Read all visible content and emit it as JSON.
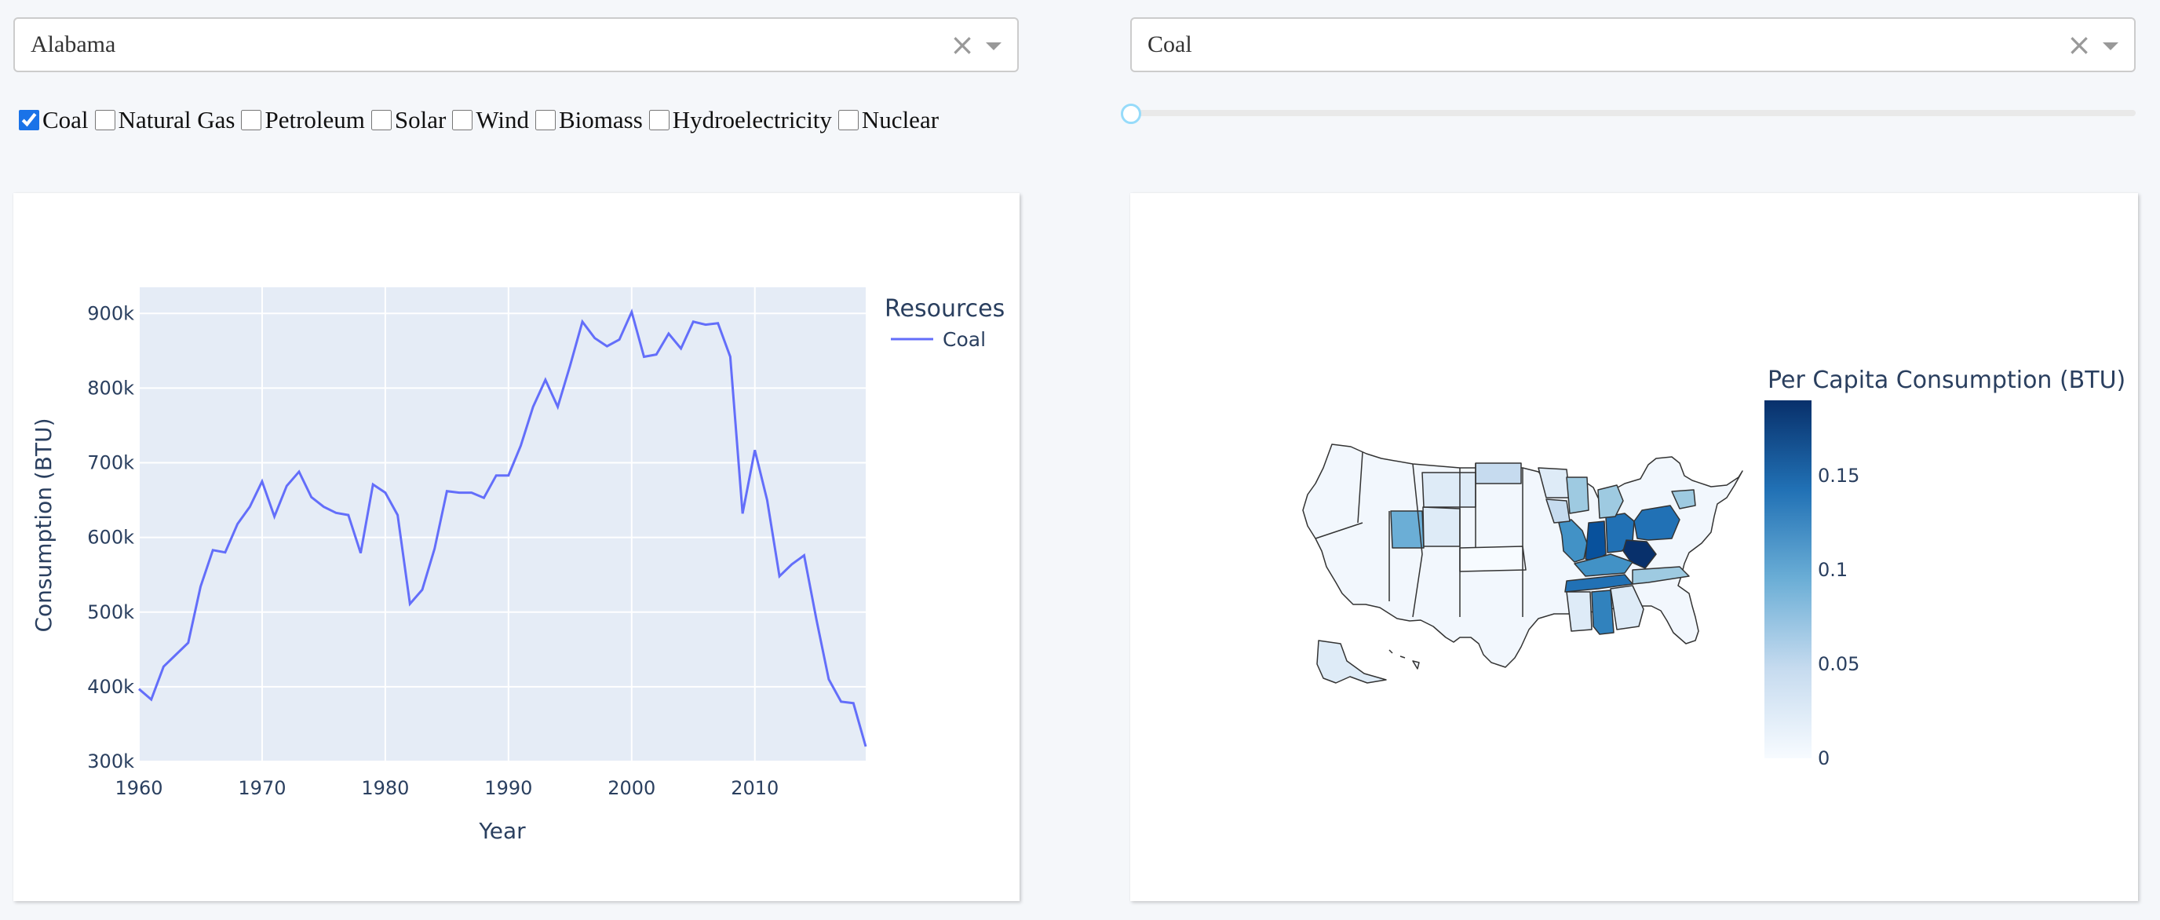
{
  "state_dropdown": {
    "value": "Alabama",
    "clear_icon": "clear-x-icon",
    "arrow_icon": "chevron-down-icon"
  },
  "resource_dropdown": {
    "value": "Coal",
    "clear_icon": "clear-x-icon",
    "arrow_icon": "chevron-down-icon"
  },
  "resources": [
    {
      "label": "Coal",
      "checked": true
    },
    {
      "label": "Natural Gas",
      "checked": false
    },
    {
      "label": "Petroleum",
      "checked": false
    },
    {
      "label": "Solar",
      "checked": false
    },
    {
      "label": "Wind",
      "checked": false
    },
    {
      "label": "Biomass",
      "checked": false
    },
    {
      "label": "Hydroelectricity",
      "checked": false
    },
    {
      "label": "Nuclear",
      "checked": false
    }
  ],
  "year_slider": {
    "value": 0
  },
  "colors": {
    "line": "#636efa",
    "plot_bg": "#e5ecf6",
    "map_dark": "#08306b",
    "map_light": "#f7fbff"
  },
  "chart_data": [
    {
      "type": "line",
      "xlabel": "Year",
      "ylabel": "Consumption (BTU)",
      "legend_title": "Resources",
      "legend_placement": "top-right",
      "xlim": [
        1960,
        2019
      ],
      "ylim": [
        300000,
        935000
      ],
      "x_ticks": [
        1960,
        1970,
        1980,
        1990,
        2000,
        2010
      ],
      "y_ticks": [
        300000,
        400000,
        500000,
        600000,
        700000,
        800000,
        900000
      ],
      "y_tick_labels": [
        "300k",
        "400k",
        "500k",
        "600k",
        "700k",
        "800k",
        "900k"
      ],
      "series": [
        {
          "name": "Coal",
          "x": [
            1960,
            1961,
            1962,
            1963,
            1964,
            1965,
            1966,
            1967,
            1968,
            1969,
            1970,
            1971,
            1972,
            1973,
            1974,
            1975,
            1976,
            1977,
            1978,
            1979,
            1980,
            1981,
            1982,
            1983,
            1984,
            1985,
            1986,
            1987,
            1988,
            1989,
            1990,
            1991,
            1992,
            1993,
            1994,
            1995,
            1996,
            1997,
            1998,
            1999,
            2000,
            2001,
            2002,
            2003,
            2004,
            2005,
            2006,
            2007,
            2008,
            2009,
            2010,
            2011,
            2012,
            2013,
            2014,
            2015,
            2016,
            2017,
            2018,
            2019
          ],
          "values": [
            397000,
            383000,
            427000,
            443000,
            459000,
            534000,
            583000,
            580000,
            618000,
            641000,
            675000,
            628000,
            669000,
            688000,
            654000,
            641000,
            633000,
            630000,
            579000,
            671000,
            660000,
            630000,
            511000,
            530000,
            585000,
            662000,
            660000,
            660000,
            653000,
            683000,
            683000,
            723000,
            775000,
            811000,
            775000,
            830000,
            889000,
            867000,
            856000,
            865000,
            902000,
            842000,
            845000,
            873000,
            853000,
            889000,
            885000,
            887000,
            842000,
            632000,
            717000,
            650000,
            548000,
            564000,
            576000,
            490000,
            410000,
            380000,
            378000,
            320000
          ]
        }
      ]
    },
    {
      "type": "choropleth",
      "colorbar_title": "Per Capita Consumption (BTU)",
      "colorbar_range": [
        0,
        0.19
      ],
      "colorbar_ticks": [
        0,
        0.05,
        0.1,
        0.15
      ],
      "colorbar_tick_labels": [
        "0",
        "0.05",
        "0.1",
        "0.15"
      ]
    }
  ]
}
